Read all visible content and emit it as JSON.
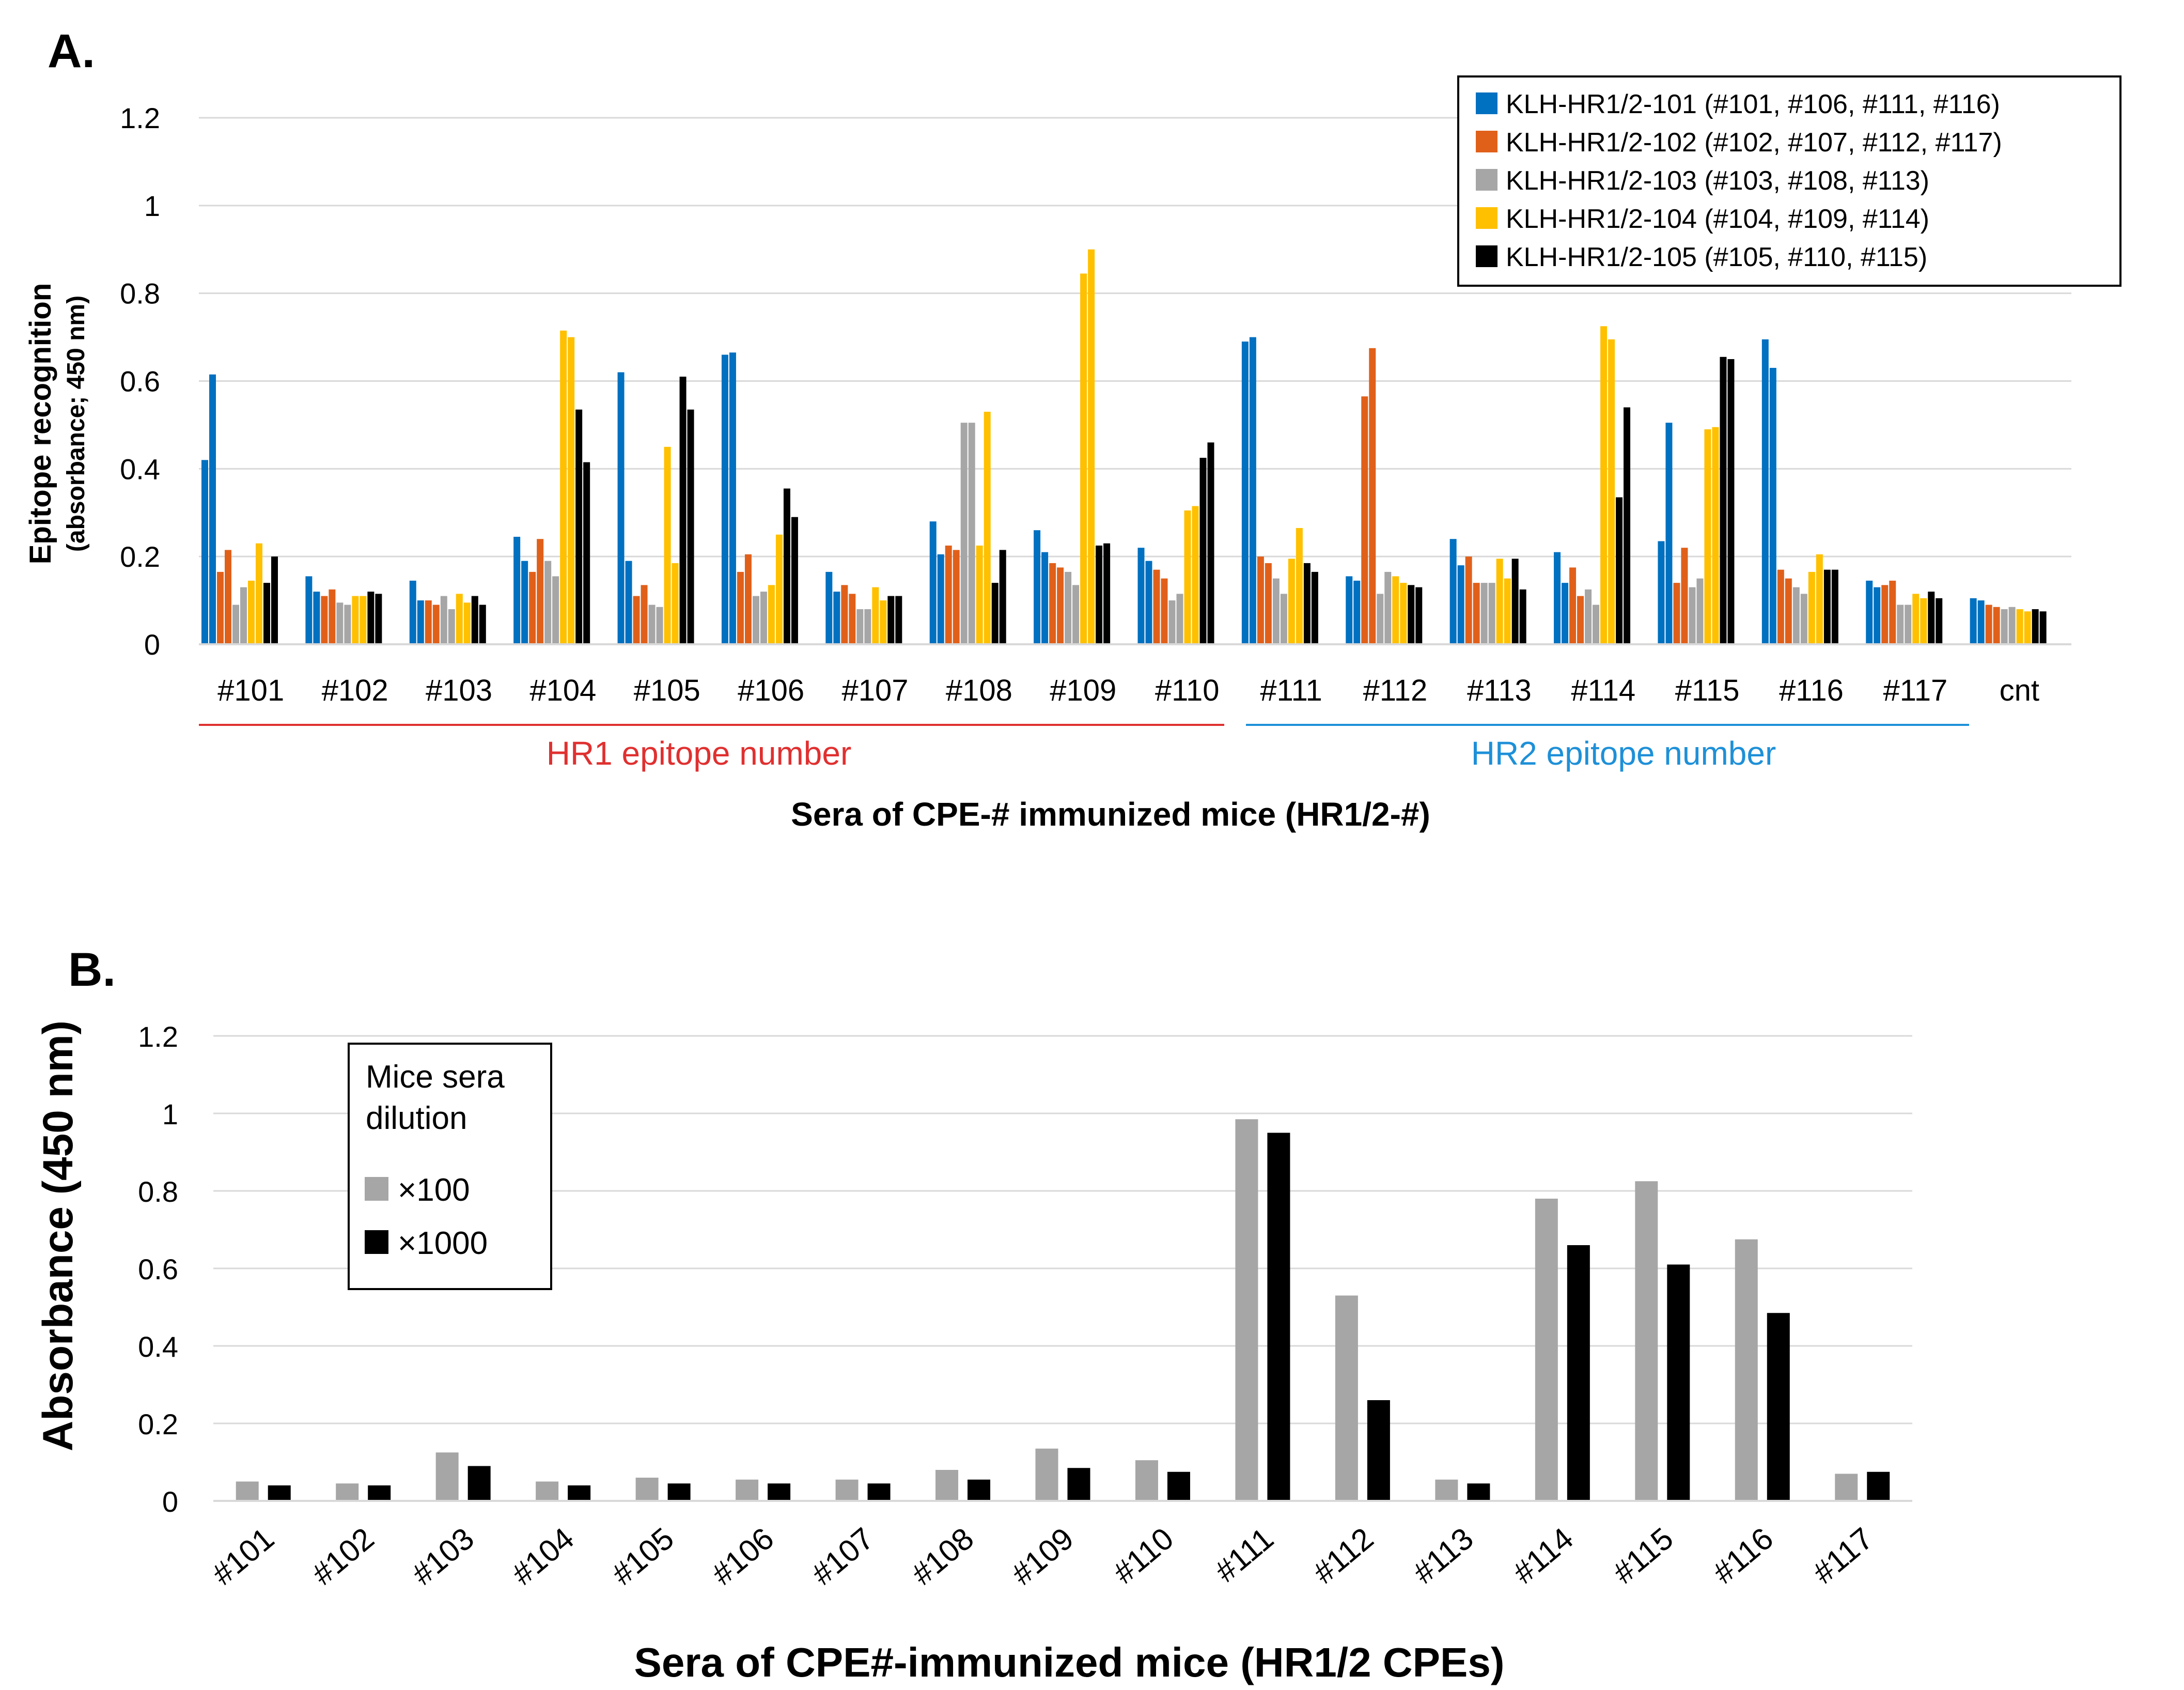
{
  "colors": {
    "blue": "#0070C0",
    "orange": "#E0601A",
    "gray": "#A6A6A6",
    "yellow": "#FFC000",
    "black": "#000000",
    "hr1_red": "#E03030",
    "hr2_blue": "#1E90D8"
  },
  "chart_data": [
    {
      "type": "bar",
      "panel_label": "A.",
      "title": "",
      "xlabel": "Sera of CPE-# immunized mice (HR1/2-#)",
      "ylabel": "Epitope recognition",
      "ylabel_sub": "(absorbance; 450 nm)",
      "ylim": [
        0,
        1.2
      ],
      "yticks": [
        0,
        0.2,
        0.4,
        0.6,
        0.8,
        1,
        1.2
      ],
      "ytick_labels": [
        "0",
        "0.2",
        "0.4",
        "0.6",
        "0.8",
        "1",
        "1.2"
      ],
      "grid": true,
      "legend_position": "top-right",
      "categories": [
        "#101",
        "#102",
        "#103",
        "#104",
        "#105",
        "#106",
        "#107",
        "#108",
        "#109",
        "#110",
        "#111",
        "#112",
        "#113",
        "#114",
        "#115",
        "#116",
        "#117",
        "cnt"
      ],
      "group_labels": {
        "hr1": "HR1 epitope number",
        "hr2": "HR2 epitope number"
      },
      "series": [
        {
          "name": "KLH-HR1/2-101 (#101, #106, #111, #116)",
          "color_key": "blue",
          "values": [
            [
              0.42,
              0.615
            ],
            [
              0.155,
              0.12
            ],
            [
              0.145,
              0.1
            ],
            [
              0.245,
              0.19
            ],
            [
              0.62,
              0.19
            ],
            [
              0.66,
              0.665
            ],
            [
              0.165,
              0.12
            ],
            [
              0.28,
              0.205
            ],
            [
              0.26,
              0.21
            ],
            [
              0.22,
              0.19
            ],
            [
              0.69,
              0.7
            ],
            [
              0.155,
              0.145
            ],
            [
              0.24,
              0.18
            ],
            [
              0.21,
              0.14
            ],
            [
              0.235,
              0.505
            ],
            [
              0.695,
              0.63
            ],
            [
              0.145,
              0.13
            ],
            [
              0.105,
              0.1
            ]
          ]
        },
        {
          "name": "KLH-HR1/2-102 (#102, #107, #112, #117)",
          "color_key": "orange",
          "values": [
            [
              0.165,
              0.215
            ],
            [
              0.11,
              0.125
            ],
            [
              0.1,
              0.09
            ],
            [
              0.165,
              0.24
            ],
            [
              0.11,
              0.135
            ],
            [
              0.165,
              0.205
            ],
            [
              0.135,
              0.115
            ],
            [
              0.225,
              0.215
            ],
            [
              0.185,
              0.175
            ],
            [
              0.17,
              0.15
            ],
            [
              0.2,
              0.185
            ],
            [
              0.565,
              0.675
            ],
            [
              0.2,
              0.14
            ],
            [
              0.175,
              0.11
            ],
            [
              0.14,
              0.22
            ],
            [
              0.17,
              0.15
            ],
            [
              0.135,
              0.145
            ],
            [
              0.09,
              0.085
            ]
          ]
        },
        {
          "name": "KLH-HR1/2-103 (#103, #108, #113)",
          "color_key": "gray",
          "values": [
            [
              0.09,
              0.13
            ],
            [
              0.095,
              0.09
            ],
            [
              0.11,
              0.08
            ],
            [
              0.19,
              0.155
            ],
            [
              0.09,
              0.085
            ],
            [
              0.11,
              0.12
            ],
            [
              0.08,
              0.08
            ],
            [
              0.505,
              0.505
            ],
            [
              0.165,
              0.135
            ],
            [
              0.1,
              0.115
            ],
            [
              0.15,
              0.115
            ],
            [
              0.115,
              0.165
            ],
            [
              0.14,
              0.14
            ],
            [
              0.125,
              0.09
            ],
            [
              0.13,
              0.15
            ],
            [
              0.13,
              0.115
            ],
            [
              0.09,
              0.09
            ],
            [
              0.08,
              0.085
            ]
          ]
        },
        {
          "name": "KLH-HR1/2-104 (#104, #109, #114)",
          "color_key": "yellow",
          "values": [
            [
              0.145,
              0.23
            ],
            [
              0.11,
              0.11
            ],
            [
              0.115,
              0.095
            ],
            [
              0.715,
              0.7
            ],
            [
              0.45,
              0.185
            ],
            [
              0.135,
              0.25
            ],
            [
              0.13,
              0.1
            ],
            [
              0.225,
              0.53
            ],
            [
              0.845,
              0.9
            ],
            [
              0.305,
              0.315
            ],
            [
              0.195,
              0.265
            ],
            [
              0.155,
              0.14
            ],
            [
              0.195,
              0.15
            ],
            [
              0.725,
              0.695
            ],
            [
              0.49,
              0.495
            ],
            [
              0.165,
              0.205
            ],
            [
              0.115,
              0.105
            ],
            [
              0.08,
              0.075
            ]
          ]
        },
        {
          "name": "KLH-HR1/2-105 (#105, #110, #115)",
          "color_key": "black",
          "values": [
            [
              0.14,
              0.2
            ],
            [
              0.12,
              0.115
            ],
            [
              0.11,
              0.09
            ],
            [
              0.535,
              0.415
            ],
            [
              0.61,
              0.535
            ],
            [
              0.355,
              0.29
            ],
            [
              0.11,
              0.11
            ],
            [
              0.14,
              0.215
            ],
            [
              0.225,
              0.23
            ],
            [
              0.425,
              0.46
            ],
            [
              0.185,
              0.165
            ],
            [
              0.135,
              0.13
            ],
            [
              0.195,
              0.125
            ],
            [
              0.335,
              0.54
            ],
            [
              0.655,
              0.65
            ],
            [
              0.17,
              0.17
            ],
            [
              0.12,
              0.105
            ],
            [
              0.08,
              0.075
            ]
          ]
        }
      ]
    },
    {
      "type": "bar",
      "panel_label": "B.",
      "title": "",
      "xlabel": "Sera of CPE#-immunized mice (HR1/2 CPEs)",
      "ylabel": "Absorbance (450 nm)",
      "ylim": [
        0,
        1.2
      ],
      "yticks": [
        0,
        0.2,
        0.4,
        0.6,
        0.8,
        1,
        1.2
      ],
      "ytick_labels": [
        "0",
        "0.2",
        "0.4",
        "0.6",
        "0.8",
        "1",
        "1.2"
      ],
      "grid": true,
      "legend_title": [
        "Mice sera",
        "dilution"
      ],
      "legend_position": "top-left",
      "categories": [
        "#101",
        "#102",
        "#103",
        "#104",
        "#105",
        "#106",
        "#107",
        "#108",
        "#109",
        "#110",
        "#111",
        "#112",
        "#113",
        "#114",
        "#115",
        "#116",
        "#117"
      ],
      "series": [
        {
          "name": "×100",
          "color_key": "gray",
          "values": [
            0.05,
            0.045,
            0.125,
            0.05,
            0.06,
            0.055,
            0.055,
            0.08,
            0.135,
            0.105,
            0.985,
            0.53,
            0.055,
            0.78,
            0.825,
            0.675,
            0.07
          ]
        },
        {
          "name": "×1000",
          "color_key": "black",
          "values": [
            0.04,
            0.04,
            0.09,
            0.04,
            0.045,
            0.045,
            0.045,
            0.055,
            0.085,
            0.075,
            0.95,
            0.26,
            0.045,
            0.66,
            0.61,
            0.485,
            0.075
          ]
        }
      ]
    }
  ]
}
